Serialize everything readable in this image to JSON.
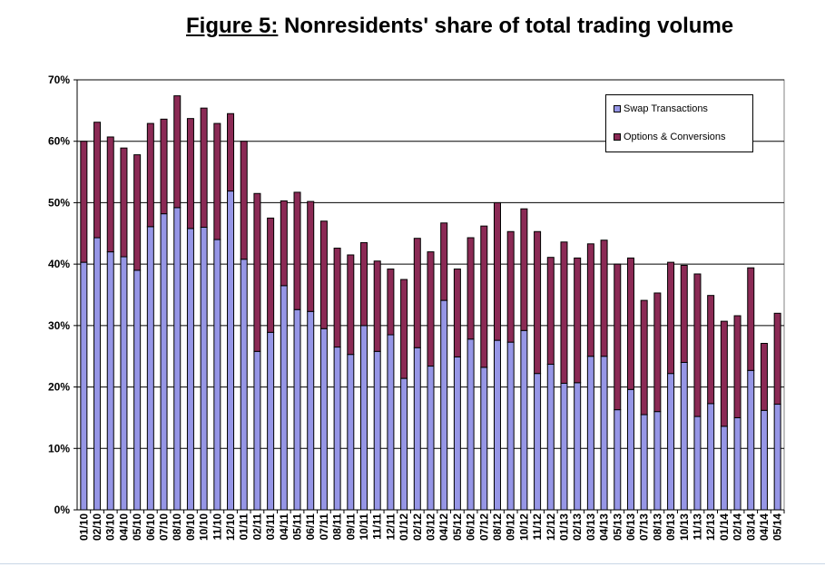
{
  "title": {
    "label": "Figure 5:",
    "text": "Nonresidents' share of total trading volume"
  },
  "colors": {
    "swap": "#9696e6",
    "options": "#8b2a55",
    "grid": "#000000",
    "background": "#ffffff"
  },
  "legend": {
    "position": "top-right",
    "items": [
      {
        "label": "Swap Transactions",
        "color": "#9696e6"
      },
      {
        "label": "Options & Conversions",
        "color": "#8b2a55"
      }
    ]
  },
  "chart_data": {
    "type": "bar",
    "stacked": true,
    "title": "Figure 5: Nonresidents' share of total trading volume",
    "xlabel": "",
    "ylabel": "",
    "ylim": [
      0,
      70
    ],
    "yticks": [
      "0%",
      "10%",
      "20%",
      "30%",
      "40%",
      "50%",
      "60%",
      "70%"
    ],
    "grid": "horizontal",
    "legend_position": "top-right",
    "categories": [
      "01/10",
      "02/10",
      "03/10",
      "04/10",
      "05/10",
      "06/10",
      "07/10",
      "08/10",
      "09/10",
      "10/10",
      "11/10",
      "12/10",
      "01/11",
      "02/11",
      "03/11",
      "04/11",
      "05/11",
      "06/11",
      "07/11",
      "08/11",
      "09/11",
      "10/11",
      "11/11",
      "12/11",
      "01/12",
      "02/12",
      "03/12",
      "04/12",
      "05/12",
      "06/12",
      "07/12",
      "08/12",
      "09/12",
      "10/12",
      "11/12",
      "12/12",
      "01/13",
      "02/13",
      "03/13",
      "04/13",
      "05/13",
      "06/13",
      "07/13",
      "08/13",
      "09/13",
      "10/13",
      "11/13",
      "12/13",
      "01/14",
      "02/14",
      "03/14",
      "04/14",
      "05/14"
    ],
    "series": [
      {
        "name": "Swap Transactions",
        "values": [
          40.3,
          44.3,
          42.0,
          41.2,
          39.0,
          46.1,
          48.2,
          49.2,
          45.8,
          46.0,
          44.0,
          51.9,
          40.8,
          25.8,
          28.9,
          36.5,
          32.6,
          32.3,
          29.5,
          26.5,
          25.3,
          30.0,
          25.8,
          28.5,
          21.4,
          26.4,
          23.4,
          34.1,
          24.9,
          27.8,
          23.2,
          27.6,
          27.3,
          29.2,
          22.2,
          23.7,
          20.6,
          20.7,
          25.0,
          25.0,
          16.3,
          19.6,
          15.5,
          16.0,
          22.2,
          24.0,
          15.2,
          17.3,
          13.6,
          15.0,
          22.7,
          16.2,
          17.2
        ]
      },
      {
        "name": "Options & Conversions",
        "values": [
          19.7,
          18.8,
          18.7,
          17.7,
          18.8,
          16.8,
          15.4,
          18.2,
          17.9,
          19.4,
          18.9,
          12.6,
          19.2,
          25.7,
          18.6,
          13.8,
          19.1,
          17.9,
          17.5,
          16.1,
          16.2,
          13.5,
          14.7,
          10.7,
          16.1,
          17.8,
          18.6,
          12.6,
          14.3,
          16.5,
          23.0,
          22.4,
          18.0,
          19.8,
          23.1,
          17.4,
          23.0,
          20.3,
          18.3,
          18.9,
          23.7,
          21.4,
          18.6,
          19.3,
          18.1,
          15.8,
          23.2,
          17.6,
          17.1,
          16.6,
          16.7,
          10.9,
          14.8
        ]
      }
    ]
  }
}
